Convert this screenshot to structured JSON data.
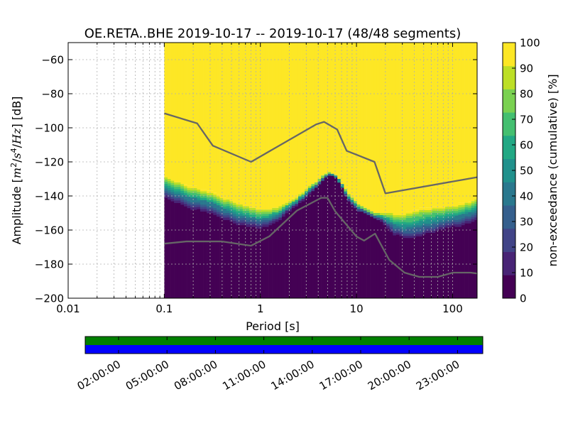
{
  "chart_data": {
    "type": "heatmap",
    "title": "OE.RETA..BHE   2019-10-17 -- 2019-10-17  (48/48 segments)",
    "xlabel": "Period [s]",
    "ylabel_prefix": "Amplitude [",
    "ylabel_unit_m": "m",
    "ylabel_exp_m": "2",
    "ylabel_slash1": "/",
    "ylabel_unit_s": "s",
    "ylabel_exp_s": "4",
    "ylabel_slash2": "/",
    "ylabel_unit_hz": "Hz",
    "ylabel_suffix": "] [dB]",
    "x_scale": "log",
    "xlim": [
      0.01,
      180
    ],
    "ylim": [
      -200,
      -50
    ],
    "xticks": [
      {
        "value": 0.01,
        "label": "0.01"
      },
      {
        "value": 0.1,
        "label": "0.1"
      },
      {
        "value": 1,
        "label": "1"
      },
      {
        "value": 10,
        "label": "10"
      },
      {
        "value": 100,
        "label": "100"
      }
    ],
    "yticks": [
      {
        "value": -60,
        "label": "−60"
      },
      {
        "value": -80,
        "label": "−80"
      },
      {
        "value": -100,
        "label": "−100"
      },
      {
        "value": -120,
        "label": "−120"
      },
      {
        "value": -140,
        "label": "−140"
      },
      {
        "value": -160,
        "label": "−160"
      },
      {
        "value": -180,
        "label": "−180"
      },
      {
        "value": -200,
        "label": "−200"
      }
    ],
    "grid": true,
    "data_period_min": 0.1,
    "colorbar": {
      "label": "non-exceedance (cumulative) [%]",
      "range": [
        0,
        100
      ],
      "ticks": [
        {
          "value": 0,
          "label": "0"
        },
        {
          "value": 10,
          "label": "10"
        },
        {
          "value": 20,
          "label": "20"
        },
        {
          "value": 30,
          "label": "30"
        },
        {
          "value": 40,
          "label": "40"
        },
        {
          "value": 50,
          "label": "50"
        },
        {
          "value": 60,
          "label": "60"
        },
        {
          "value": 70,
          "label": "70"
        },
        {
          "value": 80,
          "label": "80"
        },
        {
          "value": 90,
          "label": "90"
        },
        {
          "value": 100,
          "label": "100"
        }
      ],
      "colors": [
        "#440154",
        "#482475",
        "#414487",
        "#355f8d",
        "#2a788e",
        "#21918c",
        "#22a884",
        "#44bf70",
        "#7ad151",
        "#bddf26",
        "#fde725"
      ]
    },
    "ppsd_bounds": {
      "period": [
        0.1,
        0.15,
        0.2,
        0.3,
        0.4,
        0.5,
        0.6,
        0.8,
        1,
        1.3,
        1.6,
        2,
        2.5,
        3,
        3.5,
        4,
        4.5,
        5,
        5.5,
        6,
        7,
        8,
        10,
        12,
        15,
        18,
        20,
        25,
        30,
        40,
        50,
        70,
        100,
        130,
        180
      ],
      "low": [
        -141,
        -145,
        -148,
        -150,
        -153,
        -155,
        -157,
        -158,
        -159,
        -157,
        -154,
        -149,
        -145,
        -141,
        -137,
        -134,
        -131,
        -128,
        -127,
        -129,
        -134,
        -142,
        -148,
        -150,
        -152,
        -155,
        -157,
        -163,
        -166,
        -166,
        -164,
        -162,
        -159,
        -157,
        -154
      ],
      "high": [
        -129,
        -133,
        -134,
        -137,
        -140,
        -143,
        -145,
        -147,
        -148,
        -148,
        -146,
        -143,
        -140,
        -136,
        -133,
        -131,
        -128,
        -126,
        -126,
        -128,
        -132,
        -138,
        -144,
        -147,
        -150,
        -150,
        -150,
        -150,
        -150,
        -148,
        -147,
        -146,
        -145,
        -144,
        -142
      ]
    },
    "series": [
      {
        "name": "NHNM",
        "color": "#666666",
        "period": [
          0.1,
          0.22,
          0.32,
          0.8,
          3.8,
          4.6,
          6.3,
          7.9,
          15.4,
          20,
          180
        ],
        "values": [
          -91.5,
          -97.4,
          -110.5,
          -120,
          -98,
          -96.5,
          -101,
          -113.5,
          -120,
          -138.5,
          -129
        ]
      },
      {
        "name": "NLNM",
        "color": "#666666",
        "period": [
          0.1,
          0.17,
          0.4,
          0.8,
          1.24,
          2.4,
          4.3,
          5,
          6,
          10,
          12,
          15.6,
          21.9,
          31.6,
          45,
          70,
          101,
          154,
          180
        ],
        "values": [
          -168,
          -166.7,
          -166.7,
          -169.2,
          -163.7,
          -148.6,
          -141.1,
          -141.1,
          -149,
          -163.8,
          -166.2,
          -162.1,
          -177.5,
          -185,
          -187.5,
          -187.5,
          -185,
          -185,
          -185.5
        ]
      }
    ]
  },
  "availability": {
    "time_labels": [
      "02:00:00",
      "05:00:00",
      "08:00:00",
      "11:00:00",
      "14:00:00",
      "17:00:00",
      "20:00:00",
      "23:00:00"
    ],
    "present_color": "#008000",
    "segment_color": "#0000ff",
    "bar_count": 2
  }
}
